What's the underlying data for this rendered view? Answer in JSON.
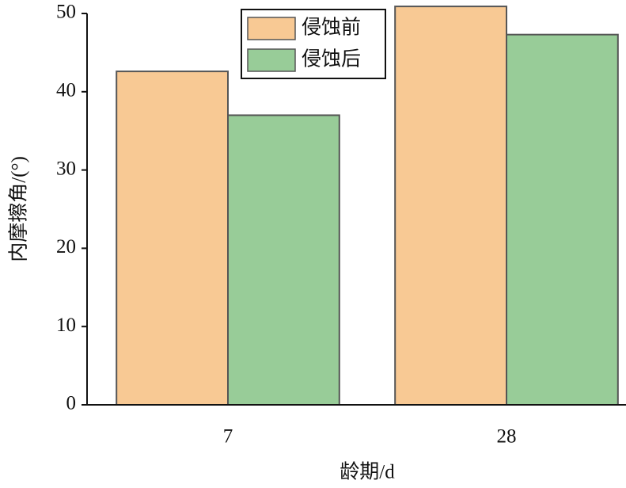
{
  "chart_data": {
    "type": "bar",
    "x_label": "龄期/d",
    "y_label": "内摩擦角/(°)",
    "categories": [
      "7",
      "28"
    ],
    "series": [
      {
        "name": "侵蚀前",
        "color": "#f8c994",
        "values": [
          42.6,
          50.9
        ]
      },
      {
        "name": "侵蚀后",
        "color": "#98cc98",
        "values": [
          37.0,
          47.3
        ]
      }
    ],
    "ylim": [
      0,
      50
    ],
    "yticks": [
      0,
      10,
      20,
      30,
      40,
      50
    ],
    "legend": "top"
  }
}
